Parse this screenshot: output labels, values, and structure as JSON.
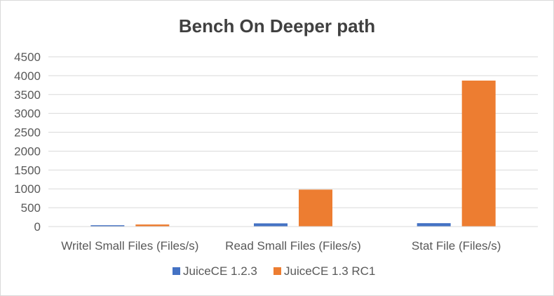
{
  "chart_data": {
    "type": "bar",
    "title": "Bench On Deeper path",
    "categories": [
      "Writel Small Files (Files/s)",
      "Read Small Files (Files/s)",
      "Stat File (Files/s)"
    ],
    "series": [
      {
        "name": "JuiceCE 1.2.3",
        "color": "#4472c4",
        "values": [
          35,
          85,
          90
        ]
      },
      {
        "name": "JuiceCE 1.3 RC1",
        "color": "#ed7d31",
        "values": [
          55,
          980,
          3870
        ]
      }
    ],
    "y_ticks": [
      "0",
      "500",
      "1000",
      "1500",
      "2000",
      "2500",
      "3000",
      "3500",
      "4000",
      "4500"
    ],
    "ylim": [
      0,
      4500
    ],
    "grid": true,
    "legend_position": "bottom"
  }
}
